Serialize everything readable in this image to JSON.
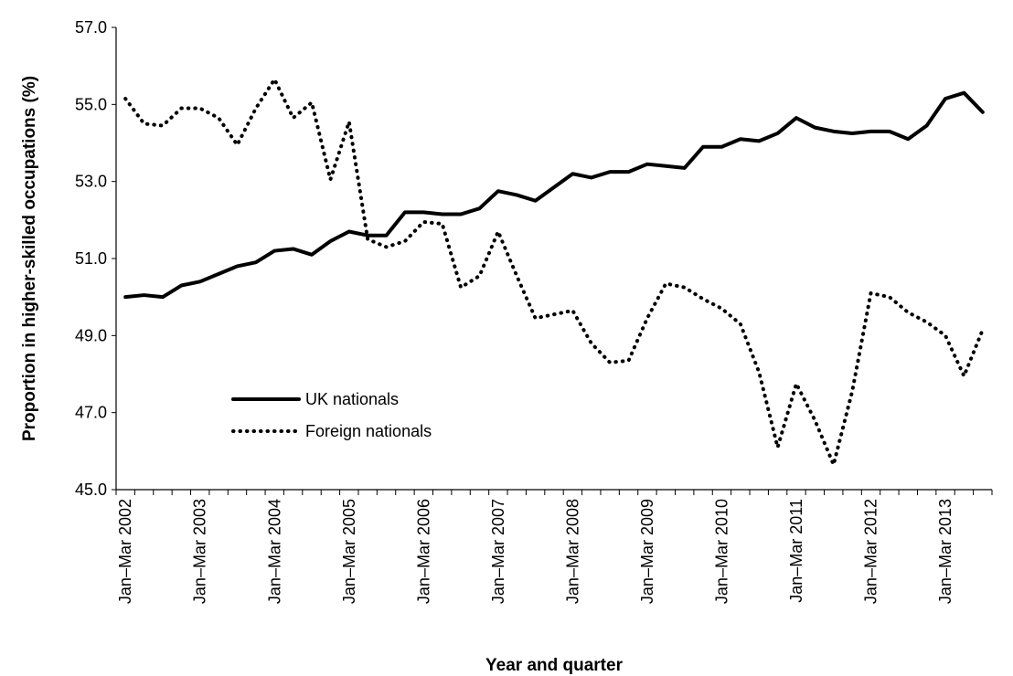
{
  "chart_data": {
    "type": "line",
    "y_label": "Proportion in higher-skilled occupations (%)",
    "x_label": "Year and quarter",
    "categories": [
      "Jan–Mar 2002",
      null,
      null,
      null,
      "Jan–Mar 2003",
      null,
      null,
      null,
      "Jan–Mar 2004",
      null,
      null,
      null,
      "Jan–Mar 2005",
      null,
      null,
      null,
      "Jan–Mar 2006",
      null,
      null,
      null,
      "Jan–Mar 2007",
      null,
      null,
      null,
      "Jan–Mar 2008",
      null,
      null,
      null,
      "Jan–Mar 2009",
      null,
      null,
      null,
      "Jan–Mar 2010",
      null,
      null,
      null,
      "Jan–Mar 2011",
      null,
      null,
      null,
      "Jan–Mar 2012",
      null,
      null,
      null,
      "Jan–Mar 2013",
      null,
      null
    ],
    "series": [
      {
        "name": "UK nationals",
        "color": "#000000",
        "style": "solid",
        "values": [
          50.0,
          50.05,
          50.0,
          50.3,
          50.4,
          50.6,
          50.8,
          50.9,
          51.2,
          51.25,
          51.1,
          51.45,
          51.7,
          51.6,
          51.6,
          52.2,
          52.2,
          52.15,
          52.15,
          52.3,
          52.75,
          52.65,
          52.5,
          52.85,
          53.2,
          53.1,
          53.25,
          53.25,
          53.45,
          53.4,
          53.35,
          53.9,
          53.9,
          54.1,
          54.05,
          54.25,
          54.65,
          54.4,
          54.3,
          54.25,
          54.3,
          54.3,
          54.1,
          54.45,
          55.15,
          55.3,
          54.8
        ]
      },
      {
        "name": "Foreign nationals",
        "color": "#000000",
        "style": "dotted",
        "values": [
          55.15,
          54.5,
          54.45,
          54.9,
          54.9,
          54.65,
          53.95,
          54.9,
          55.65,
          54.65,
          55.05,
          53.05,
          54.55,
          51.5,
          51.3,
          51.45,
          51.95,
          51.9,
          50.25,
          50.55,
          51.7,
          50.55,
          49.45,
          49.55,
          49.65,
          48.8,
          48.3,
          48.35,
          49.45,
          50.35,
          50.25,
          49.95,
          49.7,
          49.3,
          48.05,
          46.1,
          47.75,
          46.8,
          45.65,
          47.55,
          50.1,
          50.0,
          49.6,
          49.35,
          49.0,
          47.95,
          49.15
        ]
      }
    ],
    "ylim": [
      45,
      57
    ],
    "yticks": [
      {
        "value": 45,
        "label": "45.0"
      },
      {
        "value": 47,
        "label": "47.0"
      },
      {
        "value": 49,
        "label": "49.0"
      },
      {
        "value": 51,
        "label": "51.0"
      },
      {
        "value": 53,
        "label": "53.0"
      },
      {
        "value": 55,
        "label": "55.0"
      },
      {
        "value": 57,
        "label": "57.0"
      }
    ],
    "grid": false
  }
}
